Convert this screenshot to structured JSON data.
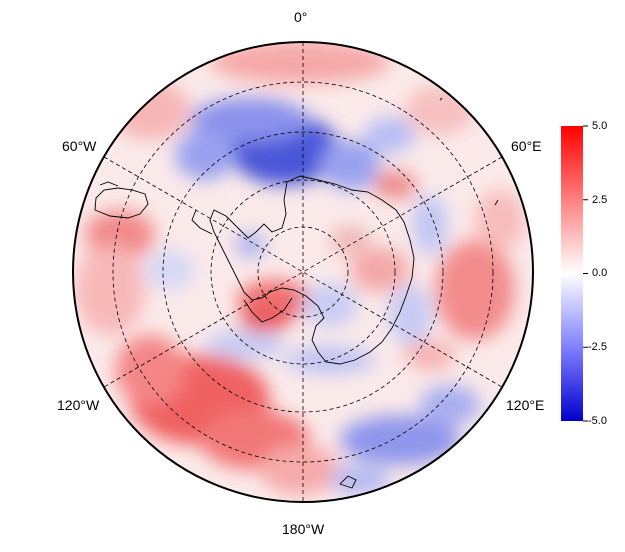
{
  "map": {
    "projection": "south-polar-stereographic",
    "longitude_labels": [
      {
        "id": "lon-0",
        "text": "0°"
      },
      {
        "id": "lon-60e",
        "text": "60°E"
      },
      {
        "id": "lon-120e",
        "text": "120°E"
      },
      {
        "id": "lon-180w",
        "text": "180°W"
      },
      {
        "id": "lon-120w",
        "text": "120°W"
      },
      {
        "id": "lon-60w",
        "text": "60°W"
      }
    ],
    "graticule_style": "dashed",
    "coastline_color": "#000000"
  },
  "colorbar": {
    "ticks": [
      "5.0",
      "2.5",
      "0.0",
      "-2.5",
      "-5.0"
    ],
    "range": [
      -5.0,
      5.0
    ],
    "colors": {
      "high": "#ff0000",
      "mid": "#ffffff",
      "low": "#0000cc"
    }
  }
}
